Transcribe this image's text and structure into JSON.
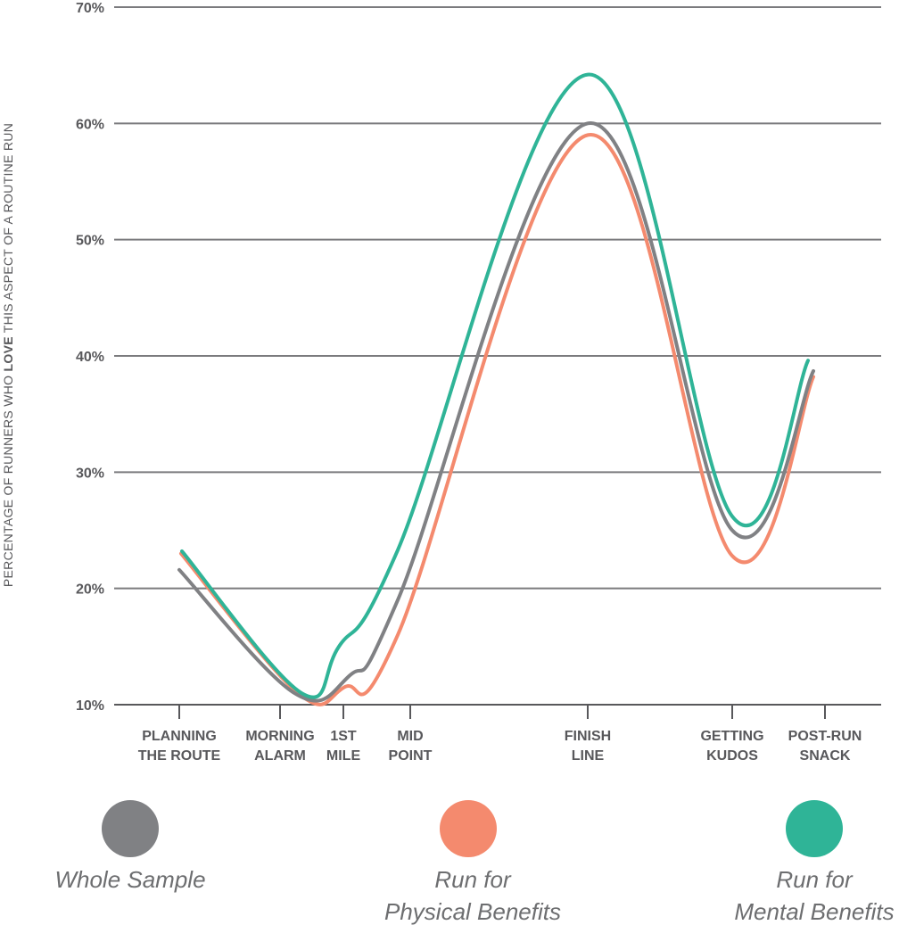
{
  "chart_data": {
    "type": "line",
    "ylabel": {
      "before": "PERCENTAGE OF RUNNERS WHO ",
      "emphasis": "LOVE",
      "after": " THIS ASPECT OF A ROUTINE RUN"
    },
    "ylim": [
      10,
      70
    ],
    "yticks": [
      {
        "value": 10,
        "label": "10%"
      },
      {
        "value": 20,
        "label": "20%"
      },
      {
        "value": 30,
        "label": "30%"
      },
      {
        "value": 40,
        "label": "40%"
      },
      {
        "value": 50,
        "label": "50%"
      },
      {
        "value": 60,
        "label": "60%"
      },
      {
        "value": 70,
        "label": "70%"
      }
    ],
    "grid": true,
    "categories": [
      {
        "lines": [
          "PLANNING",
          "THE ROUTE"
        ]
      },
      {
        "lines": [
          "MORNING",
          "ALARM"
        ]
      },
      {
        "lines": [
          "1ST",
          "MILE"
        ]
      },
      {
        "lines": [
          "MID",
          "POINT"
        ]
      },
      {
        "lines": [
          "FINISH",
          "LINE"
        ]
      },
      {
        "lines": [
          "GETTING",
          "KUDOS"
        ]
      },
      {
        "lines": [
          "POST-RUN",
          "SNACK"
        ]
      }
    ],
    "series": [
      {
        "name": "Whole Sample",
        "color": "#808184",
        "values": [
          21.6,
          11,
          12.5,
          19,
          60,
          25,
          38.7
        ]
      },
      {
        "name": "Run for Physical Benefits",
        "color": "#f48a6e",
        "values": [
          23,
          11,
          11.5,
          16,
          59,
          22.8,
          38.2
        ]
      },
      {
        "name": "Run for Mental Benefits",
        "color": "#2fb497",
        "values": [
          23.2,
          11,
          15,
          23.3,
          64.2,
          26.2,
          39.6
        ]
      }
    ],
    "legend": {
      "placement": "bottom",
      "items": [
        {
          "lines": [
            "Whole Sample"
          ],
          "color": "#808184"
        },
        {
          "lines": [
            "Run for",
            "Physical Benefits"
          ],
          "color": "#f48a6e"
        },
        {
          "lines": [
            "Run for",
            "Mental Benefits"
          ],
          "color": "#2fb497"
        }
      ]
    }
  }
}
